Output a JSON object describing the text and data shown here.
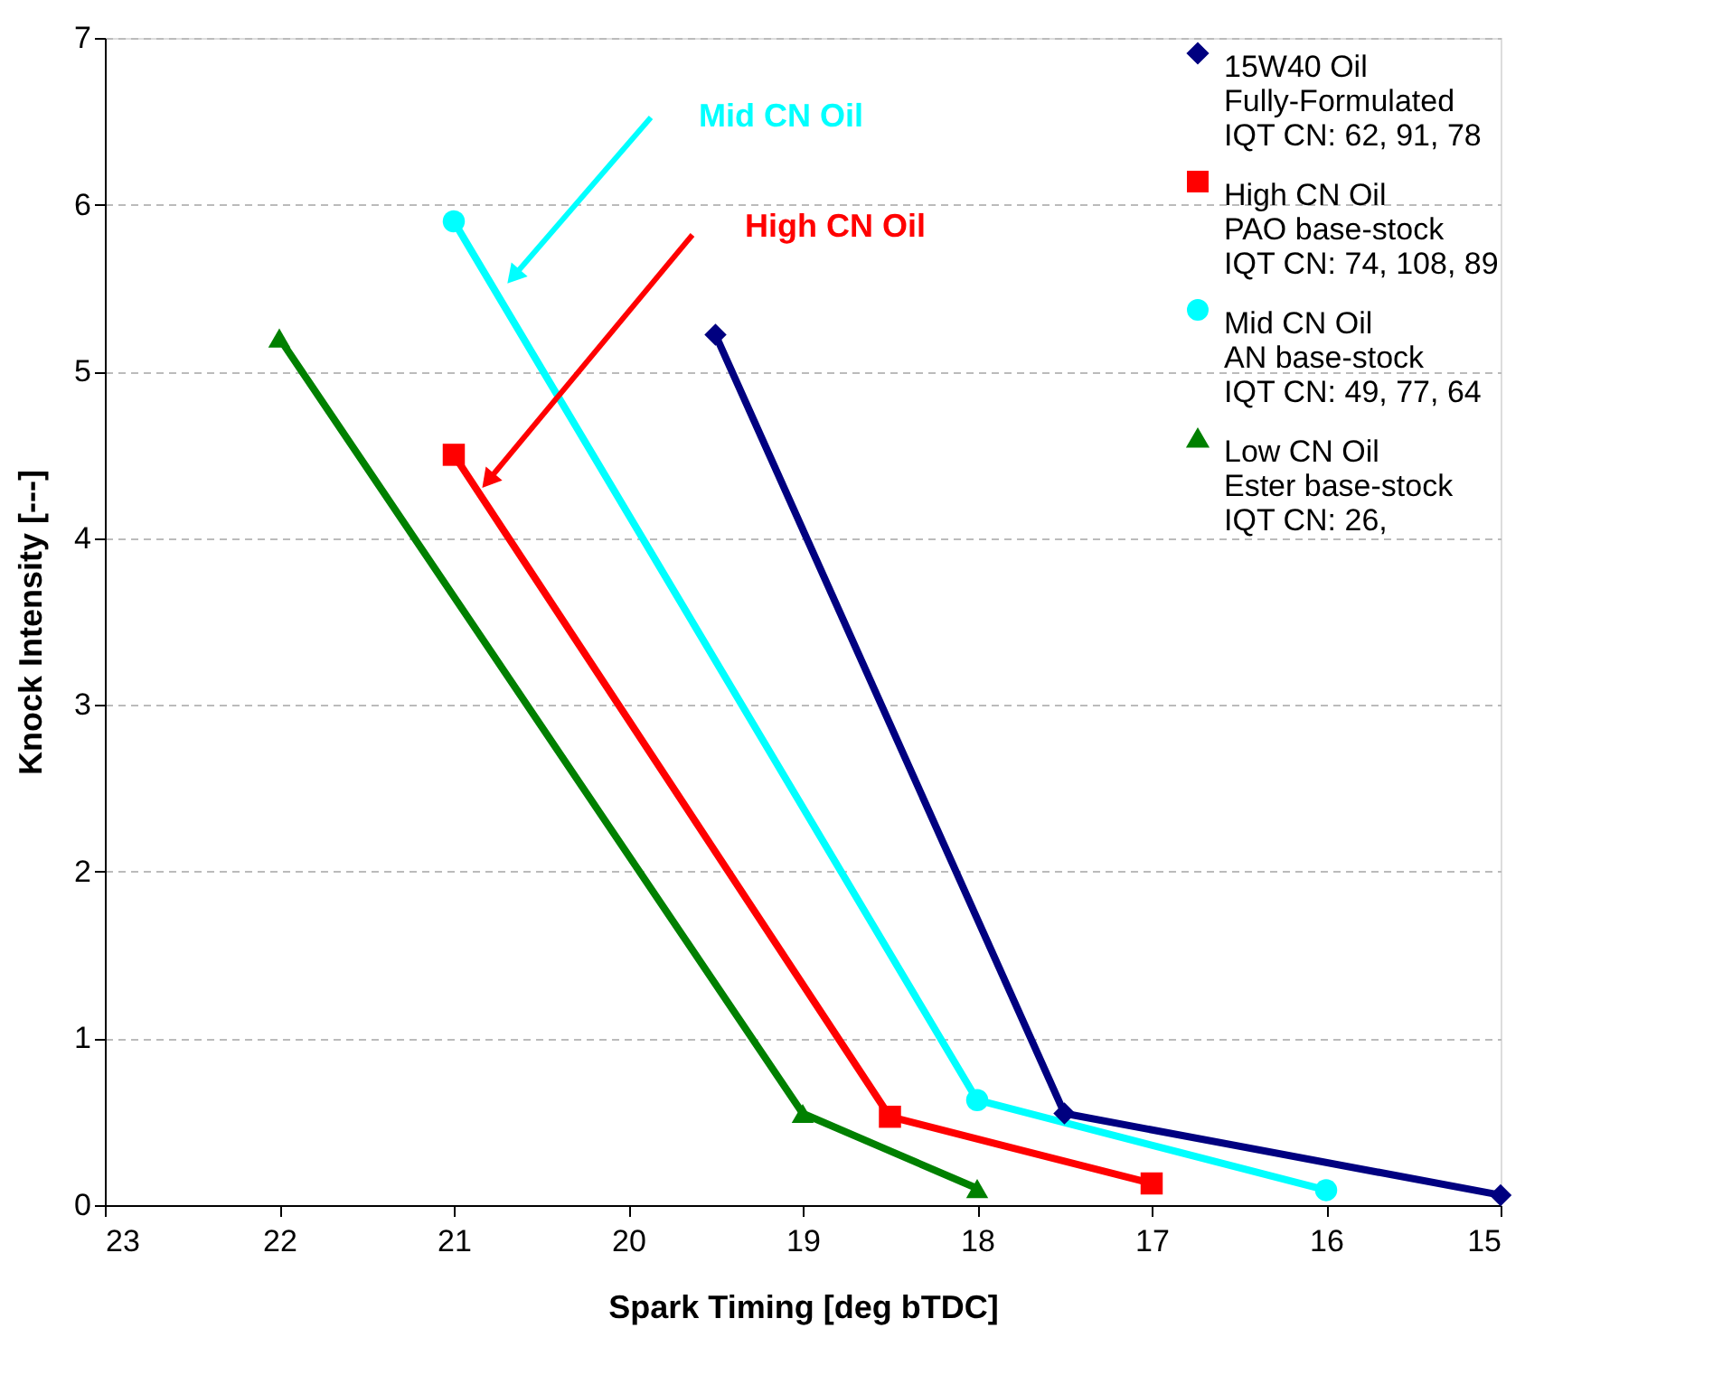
{
  "chart_data": {
    "type": "line",
    "xlabel": "Spark Timing [deg bTDC]",
    "ylabel": "Knock Intensity [---]",
    "xlim": [
      23,
      15
    ],
    "xticks": [
      23,
      22,
      21,
      20,
      19,
      18,
      17,
      16,
      15
    ],
    "ylim": [
      0,
      7
    ],
    "yticks": [
      0,
      1,
      2,
      3,
      4,
      5,
      6,
      7
    ],
    "grid": "y",
    "legend": "top right",
    "line_style": "solid",
    "series": [
      {
        "name": "15W40 Oil\nFully-Formulated\nIQT CN: 62, 91, 78",
        "color": "#000080",
        "marker": "diamond",
        "x": [
          19.5,
          17.5,
          15
        ],
        "values": [
          5.22,
          0.55,
          0.06
        ]
      },
      {
        "name": "High CN Oil\nPAO base-stock\nIQT CN: 74, 108, 89",
        "color": "#ff0000",
        "marker": "square",
        "x": [
          21,
          18.5,
          17
        ],
        "values": [
          4.5,
          0.53,
          0.13
        ]
      },
      {
        "name": "Mid CN Oil\nAN base-stock\nIQT CN: 49, 77, 64",
        "color": "#00ffff",
        "marker": "circle",
        "x": [
          21,
          18,
          16
        ],
        "values": [
          5.9,
          0.63,
          0.09
        ]
      },
      {
        "name": "Low CN Oil\nEster base-stock\nIQT CN: 26,",
        "color": "#008000",
        "marker": "triangle",
        "x": [
          22,
          19,
          18
        ],
        "values": [
          5.2,
          0.55,
          0.1
        ]
      }
    ],
    "annotations": [
      "Mid CN Oil",
      "High CN Oil"
    ]
  }
}
